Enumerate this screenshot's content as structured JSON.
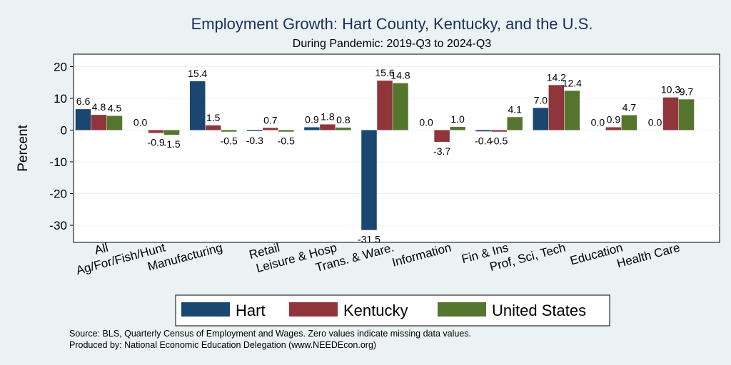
{
  "chart_data": {
    "type": "bar",
    "title": "Employment Growth: Hart County, Kentucky, and the U.S.",
    "subtitle": "During Pandemic: 2019-Q3 to 2024-Q3",
    "ylabel": "Percent",
    "xlabel": "",
    "ylim": [
      -35,
      22
    ],
    "yticks": [
      20,
      10,
      0,
      -10,
      -20,
      -30
    ],
    "categories": [
      "All",
      "Ag/For/Fish/Hunt",
      "Manufacturing",
      "Retail",
      "Leisure & Hosp",
      "Trans. & Ware.",
      "Information",
      "Fin & Ins",
      "Prof, Sci, Tech",
      "Education",
      "Health Care"
    ],
    "series": [
      {
        "name": "Hart",
        "color": "#1a476f",
        "values": [
          6.6,
          0.0,
          15.4,
          -0.3,
          0.9,
          -31.5,
          0.0,
          -0.4,
          7.0,
          0.0,
          0.0
        ],
        "labels": [
          "6.6",
          "0.0",
          "15.4",
          "-0.3",
          "0.9",
          "-31.5",
          "0.0",
          "-0.4",
          "7.0",
          "0.0",
          "0.0"
        ]
      },
      {
        "name": "Kentucky",
        "color": "#90353b",
        "values": [
          4.8,
          -0.9,
          1.5,
          0.7,
          1.8,
          15.6,
          -3.7,
          -0.5,
          14.2,
          0.9,
          10.3
        ],
        "labels": [
          "4.8",
          "-0.9",
          "1.5",
          "0.7",
          "1.8",
          "15.6",
          "-3.7",
          "-0.5",
          "14.2",
          "0.9",
          "10.3"
        ]
      },
      {
        "name": "United States",
        "color": "#55752f",
        "values": [
          4.5,
          -1.5,
          -0.5,
          -0.5,
          0.8,
          14.8,
          1.0,
          4.1,
          12.4,
          4.7,
          9.7
        ],
        "labels": [
          "4.5",
          "-1.5",
          "-0.5",
          "-0.5",
          "0.8",
          "14.8",
          "1.0",
          "4.1",
          "12.4",
          "4.7",
          "9.7"
        ]
      }
    ],
    "legend": {
      "position": "bottom",
      "entries": [
        "Hart",
        "Kentucky",
        "United States"
      ]
    },
    "notes": [
      "Source: BLS, Quarterly Census of Employment and Wages. Zero values indicate missing data values.",
      "Produced by: National Economic Education Delegation (www.NEEDEcon.org)"
    ]
  }
}
